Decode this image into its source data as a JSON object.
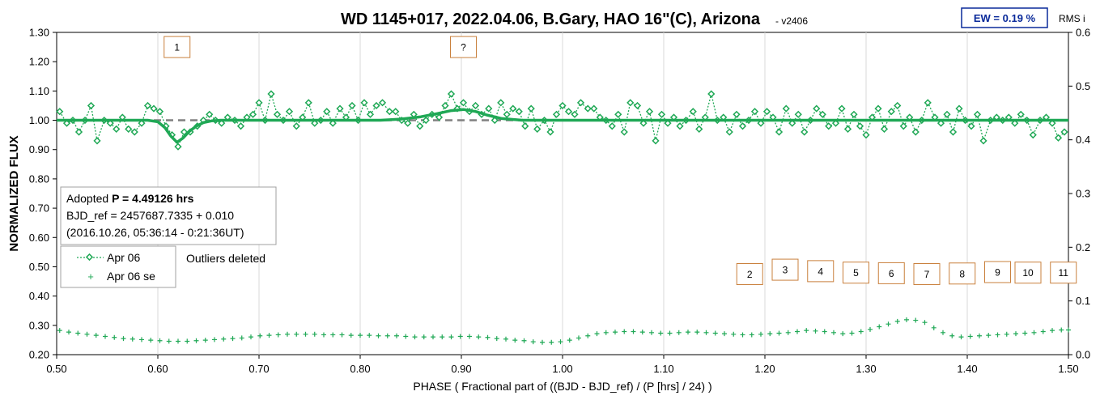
{
  "chart_data": {
    "type": "scatter",
    "title": "WD 1145+017, 2022.04.06, B.Gary, HAO 16\"(C), Arizona",
    "subtitle": "- v2406",
    "xlabel": "PHASE ( Fractional part of ((BJD - BJD_ref) / (P [hrs] / 24) )",
    "ylabel": "NORMALIZED FLUX",
    "y2label": "RMS i",
    "xlim": [
      0.5,
      1.5
    ],
    "ylim": [
      0.2,
      1.3
    ],
    "y2lim": [
      0.0,
      0.6
    ],
    "xticks": [
      "0.50",
      "0.60",
      "0.70",
      "0.80",
      "0.90",
      "1.00",
      "1.10",
      "1.20",
      "1.30",
      "1.40",
      "1.50"
    ],
    "yticks": [
      "0.20",
      "0.30",
      "0.40",
      "0.50",
      "0.60",
      "0.70",
      "0.80",
      "0.90",
      "1.00",
      "1.10",
      "1.20",
      "1.30"
    ],
    "y2ticks": [
      "0.0",
      "0.1",
      "0.2",
      "0.3",
      "0.4",
      "0.5",
      "0.6"
    ],
    "grid": "vertical",
    "ew_label": "EW = 0.19 %",
    "info_box": {
      "line1_prefix": "Adopted ",
      "line1_bold": "P = 4.49126 hrs",
      "line2": "BJD_ref = 2457687.7335 + 0.010",
      "line3": "(2016.10.26, 05:36:14 - 0:21:36UT)"
    },
    "legend": {
      "placement": "left",
      "items": [
        {
          "name": "Apr 06",
          "color": "#1fa855",
          "marker": "diamond",
          "line": "dotted"
        },
        {
          "name": "Apr 06 se",
          "color": "#1fa855",
          "marker": "plus"
        }
      ]
    },
    "outliers_note": "Outliers deleted",
    "dip_labels": [
      {
        "label": "1",
        "x": 0.619,
        "y": 1.25
      },
      {
        "label": "?",
        "x": 0.902,
        "y": 1.25
      },
      {
        "label": "2",
        "x": 1.185,
        "y": 0.475
      },
      {
        "label": "3",
        "x": 1.22,
        "y": 0.49
      },
      {
        "label": "4",
        "x": 1.255,
        "y": 0.485
      },
      {
        "label": "5",
        "x": 1.29,
        "y": 0.48
      },
      {
        "label": "6",
        "x": 1.325,
        "y": 0.478
      },
      {
        "label": "7",
        "x": 1.36,
        "y": 0.475
      },
      {
        "label": "8",
        "x": 1.395,
        "y": 0.477
      },
      {
        "label": "9",
        "x": 1.43,
        "y": 0.482
      },
      {
        "label": "10",
        "x": 1.46,
        "y": 0.48
      },
      {
        "label": "11",
        "x": 1.495,
        "y": 0.48
      }
    ],
    "reference_level": 1.0,
    "colors": {
      "series": "#1fa855",
      "model": "#1fa855",
      "ref": "#808080",
      "box_border": "#c9803d",
      "ew_border": "#0a2a9a"
    },
    "series": [
      {
        "name": "Apr 06",
        "x": [
          0.503,
          0.51,
          0.516,
          0.522,
          0.528,
          0.534,
          0.54,
          0.547,
          0.553,
          0.559,
          0.565,
          0.571,
          0.577,
          0.584,
          0.59,
          0.596,
          0.602,
          0.608,
          0.614,
          0.62,
          0.626,
          0.632,
          0.639,
          0.645,
          0.651,
          0.657,
          0.663,
          0.669,
          0.676,
          0.682,
          0.688,
          0.694,
          0.7,
          0.706,
          0.712,
          0.718,
          0.724,
          0.73,
          0.737,
          0.743,
          0.749,
          0.755,
          0.761,
          0.767,
          0.773,
          0.78,
          0.786,
          0.792,
          0.798,
          0.804,
          0.81,
          0.816,
          0.822,
          0.829,
          0.835,
          0.841,
          0.847,
          0.853,
          0.859,
          0.865,
          0.871,
          0.878,
          0.884,
          0.89,
          0.896,
          0.902,
          0.908,
          0.914,
          0.92,
          0.927,
          0.933,
          0.939,
          0.945,
          0.951,
          0.957,
          0.963,
          0.969,
          0.975,
          0.982,
          0.988,
          0.994,
          1.0,
          1.006,
          1.012,
          1.018,
          1.025,
          1.031,
          1.037,
          1.043,
          1.049,
          1.055,
          1.061,
          1.067,
          1.074,
          1.08,
          1.086,
          1.092,
          1.098,
          1.104,
          1.11,
          1.116,
          1.122,
          1.129,
          1.135,
          1.141,
          1.147,
          1.153,
          1.159,
          1.165,
          1.172,
          1.178,
          1.184,
          1.19,
          1.196,
          1.202,
          1.208,
          1.214,
          1.221,
          1.227,
          1.233,
          1.239,
          1.245,
          1.251,
          1.257,
          1.263,
          1.27,
          1.276,
          1.282,
          1.288,
          1.294,
          1.3,
          1.306,
          1.312,
          1.318,
          1.325,
          1.331,
          1.337,
          1.343,
          1.349,
          1.355,
          1.361,
          1.368,
          1.374,
          1.38,
          1.386,
          1.392,
          1.398,
          1.404,
          1.41,
          1.416,
          1.423,
          1.429,
          1.435,
          1.441,
          1.447,
          1.453,
          1.459,
          1.465,
          1.472,
          1.478,
          1.484,
          1.49,
          1.496
        ],
        "y": [
          1.03,
          0.99,
          1.0,
          0.96,
          1.0,
          1.05,
          0.93,
          1.0,
          0.99,
          0.97,
          1.01,
          0.97,
          0.96,
          0.99,
          1.05,
          1.04,
          1.03,
          0.98,
          0.95,
          0.91,
          0.96,
          0.96,
          0.98,
          1.0,
          1.02,
          1.0,
          0.99,
          1.01,
          1.0,
          0.98,
          1.01,
          1.02,
          1.06,
          1.0,
          1.09,
          1.02,
          1.0,
          1.03,
          0.98,
          1.01,
          1.06,
          0.99,
          1.0,
          1.03,
          0.99,
          1.04,
          1.01,
          1.05,
          1.0,
          1.06,
          1.02,
          1.05,
          1.06,
          1.03,
          1.03,
          1.0,
          0.99,
          1.02,
          0.98,
          1.0,
          1.02,
          1.01,
          1.05,
          1.09,
          1.04,
          1.06,
          1.03,
          1.05,
          1.02,
          1.04,
          1.0,
          1.06,
          1.02,
          1.04,
          1.03,
          0.98,
          1.04,
          0.97,
          1.0,
          0.96,
          1.02,
          1.05,
          1.03,
          1.02,
          1.06,
          1.04,
          1.04,
          1.01,
          1.0,
          0.98,
          1.02,
          0.96,
          1.06,
          1.05,
          0.99,
          1.03,
          0.93,
          1.02,
          0.99,
          1.01,
          0.98,
          1.0,
          1.03,
          0.97,
          1.01,
          1.09,
          1.0,
          1.01,
          0.96,
          1.02,
          0.98,
          1.0,
          1.03,
          0.99,
          1.03,
          1.01,
          0.96,
          1.04,
          0.99,
          1.02,
          0.96,
          1.0,
          1.04,
          1.02,
          0.98,
          0.99,
          1.04,
          0.97,
          1.02,
          0.98,
          0.95,
          1.01,
          1.04,
          0.97,
          1.03,
          1.05,
          0.98,
          1.01,
          0.96,
          1.0,
          1.06,
          1.01,
          0.99,
          1.02,
          0.96,
          1.04,
          1.0,
          0.98,
          1.02,
          0.93,
          1.0,
          1.01,
          1.0,
          1.01,
          0.99,
          1.02,
          1.0,
          0.95,
          1.0,
          1.01,
          0.99,
          0.94,
          0.96
        ]
      },
      {
        "name": "Apr 06 se",
        "x": [
          0.503,
          0.512,
          0.521,
          0.53,
          0.539,
          0.548,
          0.557,
          0.566,
          0.575,
          0.584,
          0.593,
          0.602,
          0.611,
          0.62,
          0.629,
          0.638,
          0.647,
          0.656,
          0.665,
          0.674,
          0.683,
          0.692,
          0.701,
          0.71,
          0.719,
          0.728,
          0.737,
          0.746,
          0.755,
          0.764,
          0.773,
          0.782,
          0.791,
          0.8,
          0.809,
          0.818,
          0.827,
          0.836,
          0.845,
          0.854,
          0.863,
          0.872,
          0.881,
          0.89,
          0.899,
          0.908,
          0.917,
          0.926,
          0.935,
          0.944,
          0.953,
          0.962,
          0.971,
          0.98,
          0.989,
          0.998,
          1.007,
          1.016,
          1.025,
          1.034,
          1.043,
          1.052,
          1.061,
          1.07,
          1.079,
          1.088,
          1.097,
          1.106,
          1.115,
          1.124,
          1.133,
          1.142,
          1.151,
          1.16,
          1.169,
          1.178,
          1.187,
          1.196,
          1.205,
          1.214,
          1.223,
          1.232,
          1.241,
          1.25,
          1.259,
          1.268,
          1.277,
          1.286,
          1.295,
          1.304,
          1.313,
          1.322,
          1.331,
          1.34,
          1.349,
          1.358,
          1.367,
          1.376,
          1.385,
          1.394,
          1.403,
          1.412,
          1.421,
          1.43,
          1.439,
          1.448,
          1.457,
          1.466,
          1.475,
          1.484,
          1.493,
          1.5
        ],
        "y": [
          0.045,
          0.042,
          0.04,
          0.038,
          0.036,
          0.034,
          0.032,
          0.03,
          0.029,
          0.028,
          0.027,
          0.026,
          0.025,
          0.025,
          0.025,
          0.026,
          0.027,
          0.028,
          0.029,
          0.03,
          0.031,
          0.033,
          0.035,
          0.036,
          0.037,
          0.038,
          0.038,
          0.038,
          0.038,
          0.037,
          0.037,
          0.037,
          0.036,
          0.036,
          0.036,
          0.035,
          0.035,
          0.035,
          0.034,
          0.033,
          0.033,
          0.033,
          0.033,
          0.033,
          0.034,
          0.034,
          0.033,
          0.032,
          0.03,
          0.029,
          0.027,
          0.026,
          0.024,
          0.023,
          0.023,
          0.024,
          0.027,
          0.031,
          0.035,
          0.039,
          0.041,
          0.042,
          0.043,
          0.043,
          0.042,
          0.041,
          0.04,
          0.04,
          0.041,
          0.042,
          0.042,
          0.041,
          0.04,
          0.039,
          0.038,
          0.037,
          0.037,
          0.038,
          0.039,
          0.04,
          0.041,
          0.043,
          0.045,
          0.044,
          0.043,
          0.041,
          0.039,
          0.04,
          0.043,
          0.047,
          0.052,
          0.057,
          0.062,
          0.065,
          0.064,
          0.06,
          0.05,
          0.041,
          0.035,
          0.033,
          0.034,
          0.035,
          0.036,
          0.037,
          0.038,
          0.039,
          0.04,
          0.041,
          0.043,
          0.045,
          0.046,
          0.046
        ]
      }
    ],
    "model_line": {
      "x": [
        0.5,
        0.59,
        0.6,
        0.607,
        0.613,
        0.619,
        0.625,
        0.631,
        0.638,
        0.645,
        0.653,
        0.662,
        0.675,
        0.7,
        0.82,
        0.84,
        0.86,
        0.875,
        0.89,
        0.902,
        0.914,
        0.925,
        0.94,
        0.96,
        1.0,
        1.5
      ],
      "y": [
        1.0,
        1.0,
        0.995,
        0.975,
        0.945,
        0.925,
        0.94,
        0.962,
        0.98,
        0.992,
        0.998,
        1.0,
        1.0,
        1.0,
        1.0,
        1.004,
        1.012,
        1.022,
        1.033,
        1.037,
        1.03,
        1.018,
        1.006,
        1.0,
        1.0,
        1.0
      ]
    }
  }
}
